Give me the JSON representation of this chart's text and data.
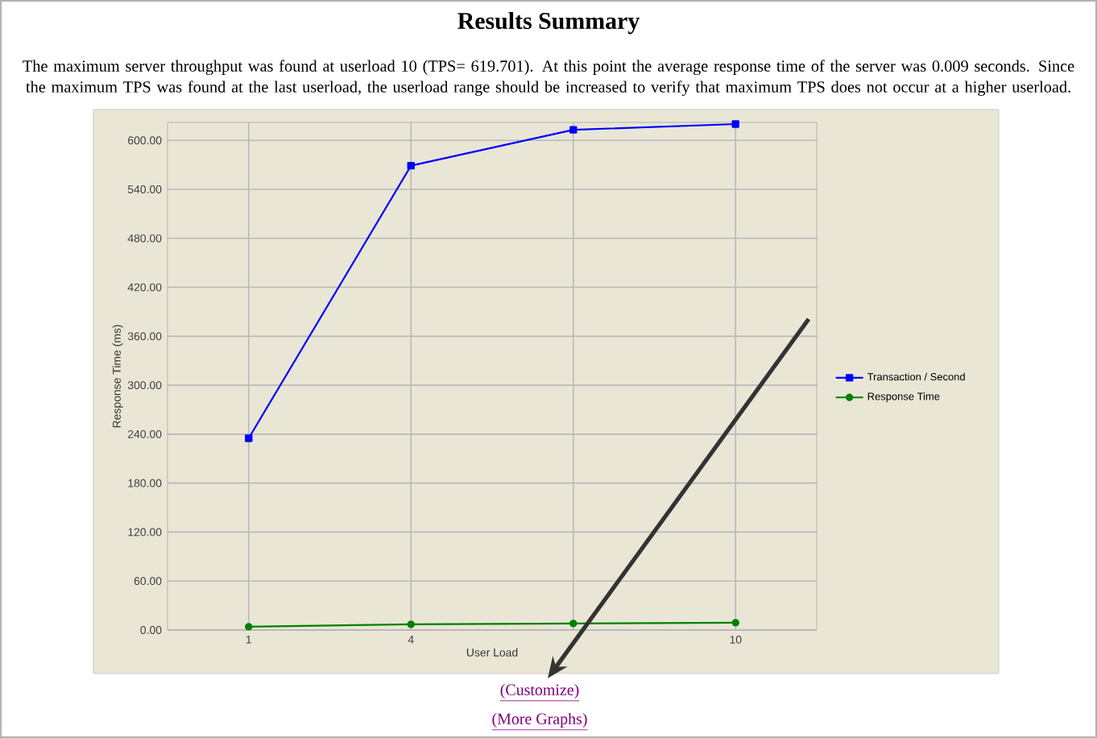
{
  "chart_data": {
    "type": "line",
    "title": "Results Summary",
    "subtitle": "The maximum server throughput was found at userload 10 (TPS= 619.701). At this point the average response time of the server was 0.009 seconds. Since the maximum TPS was found at the last userload, the userload range should be increased to verify that maximum TPS does not occur at a higher userload.",
    "xlabel": "User Load",
    "ylabel": "Response Time (ms)",
    "categories": [
      "1",
      "4",
      null,
      "10"
    ],
    "series": [
      {
        "name": "Transaction / Second",
        "color": "#0000ff",
        "marker": "square",
        "values": [
          235,
          569,
          613,
          620
        ]
      },
      {
        "name": "Response Time",
        "color": "#008000",
        "marker": "circle",
        "values": [
          4,
          7,
          8,
          9
        ]
      }
    ],
    "ylim": [
      0,
      622
    ],
    "yticks": [
      {
        "value": 0,
        "label": "0.00"
      },
      {
        "value": 60,
        "label": "60.00"
      },
      {
        "value": 120,
        "label": "120.00"
      },
      {
        "value": 180,
        "label": "180.00"
      },
      {
        "value": 240,
        "label": "240.00"
      },
      {
        "value": 300,
        "label": "300.00"
      },
      {
        "value": 360,
        "label": "360.00"
      },
      {
        "value": 420,
        "label": "420.00"
      },
      {
        "value": 480,
        "label": "480.00"
      },
      {
        "value": 540,
        "label": "540.00"
      },
      {
        "value": 600,
        "label": "600.00"
      }
    ],
    "grid": true,
    "legend": "right",
    "line_style": "solid",
    "annotations": [
      "(Customize)",
      "(More Graphs)"
    ]
  }
}
